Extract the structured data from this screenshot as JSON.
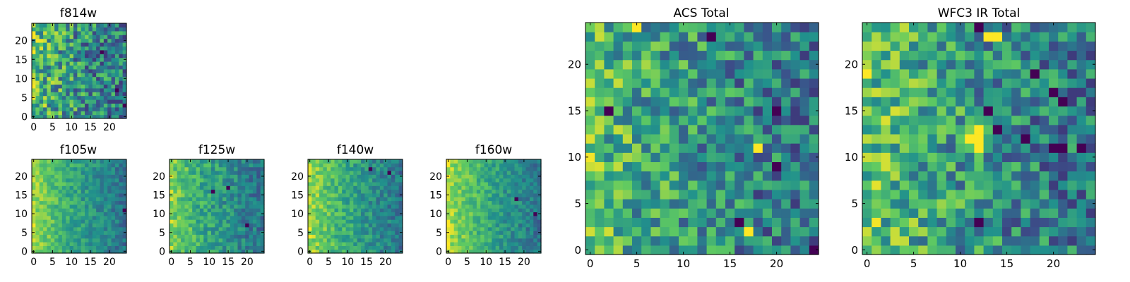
{
  "figure": {
    "description_free": true
  },
  "colormap": {
    "name": "viridis",
    "stops": [
      "#440154",
      "#3b528b",
      "#21918c",
      "#5ec962",
      "#fde725"
    ]
  },
  "chart_data": [
    {
      "id": "f814w",
      "type": "heatmap",
      "title": "f814w",
      "grid": [
        25,
        25
      ],
      "xlim": [
        0,
        24
      ],
      "ylim": [
        0,
        24
      ],
      "xticks": [
        "0",
        "5",
        "10",
        "15",
        "20"
      ],
      "yticks": [
        "0",
        "5",
        "10",
        "15",
        "20"
      ],
      "yticklabels_shown": [
        "0",
        "5",
        "10",
        "15",
        "20"
      ],
      "gradient_strength": 0.55,
      "noise": 0.45,
      "seed": 11,
      "dark_cells": [
        [
          24,
          3
        ],
        [
          18,
          17
        ],
        [
          22,
          7
        ]
      ],
      "hot_cells": []
    },
    {
      "id": "f105w",
      "type": "heatmap",
      "title": "f105w",
      "grid": [
        25,
        25
      ],
      "xlim": [
        0,
        24
      ],
      "ylim": [
        0,
        24
      ],
      "xticks": [
        "0",
        "5",
        "10",
        "15",
        "20"
      ],
      "yticks": [
        "0",
        "5",
        "10",
        "15",
        "20"
      ],
      "gradient_strength": 0.8,
      "noise": 0.18,
      "seed": 21,
      "dark_cells": [
        [
          24,
          11
        ]
      ],
      "hot_cells": []
    },
    {
      "id": "f125w",
      "type": "heatmap",
      "title": "f125w",
      "grid": [
        25,
        25
      ],
      "xlim": [
        0,
        24
      ],
      "ylim": [
        0,
        24
      ],
      "xticks": [
        "0",
        "5",
        "10",
        "15",
        "20"
      ],
      "yticks": [
        "0",
        "5",
        "10",
        "15",
        "20"
      ],
      "gradient_strength": 0.7,
      "noise": 0.22,
      "seed": 31,
      "dark_cells": [
        [
          11,
          16
        ],
        [
          15,
          17
        ],
        [
          20,
          7
        ]
      ],
      "hot_cells": []
    },
    {
      "id": "f140w",
      "type": "heatmap",
      "title": "f140w",
      "grid": [
        25,
        25
      ],
      "xlim": [
        0,
        24
      ],
      "ylim": [
        0,
        24
      ],
      "xticks": [
        "0",
        "5",
        "10",
        "15",
        "20"
      ],
      "yticks": [
        "0",
        "5",
        "10",
        "15",
        "20"
      ],
      "gradient_strength": 0.8,
      "noise": 0.2,
      "seed": 41,
      "dark_cells": [
        [
          16,
          22
        ],
        [
          21,
          21
        ]
      ],
      "hot_cells": []
    },
    {
      "id": "f160w",
      "type": "heatmap",
      "title": "f160w",
      "grid": [
        25,
        25
      ],
      "xlim": [
        0,
        24
      ],
      "ylim": [
        0,
        24
      ],
      "xticks": [
        "0",
        "5",
        "10",
        "15",
        "20"
      ],
      "yticks": [
        "0",
        "5",
        "10",
        "15",
        "20"
      ],
      "gradient_strength": 0.85,
      "noise": 0.18,
      "seed": 51,
      "dark_cells": [
        [
          18,
          14
        ],
        [
          23,
          10
        ]
      ],
      "hot_cells": []
    },
    {
      "id": "acs-total",
      "type": "heatmap",
      "title": "ACS Total",
      "grid": [
        25,
        25
      ],
      "xlim": [
        0,
        24
      ],
      "ylim": [
        0,
        24
      ],
      "xticks": [
        "0",
        "5",
        "10",
        "15",
        "20"
      ],
      "yticks": [
        "0",
        "5",
        "10",
        "15",
        "20"
      ],
      "gradient_strength": 0.55,
      "noise": 0.4,
      "seed": 61,
      "dark_cells": [
        [
          13,
          23
        ],
        [
          20,
          15
        ],
        [
          20,
          9
        ],
        [
          16,
          3
        ],
        [
          24,
          0
        ],
        [
          2,
          15
        ]
      ],
      "hot_cells": [
        [
          5,
          24
        ],
        [
          17,
          2
        ],
        [
          18,
          11
        ]
      ]
    },
    {
      "id": "wfc3-ir-total",
      "type": "heatmap",
      "title": "WFC3 IR Total",
      "grid": [
        25,
        25
      ],
      "xlim": [
        0,
        24
      ],
      "ylim": [
        0,
        24
      ],
      "xticks": [
        "0",
        "5",
        "10",
        "15",
        "20"
      ],
      "yticks": [
        "0",
        "5",
        "10",
        "15",
        "20"
      ],
      "gradient_strength": 0.6,
      "noise": 0.4,
      "seed": 71,
      "dark_cells": [
        [
          12,
          24
        ],
        [
          18,
          19
        ],
        [
          20,
          17
        ],
        [
          21,
          16
        ],
        [
          13,
          15
        ],
        [
          14,
          13
        ],
        [
          17,
          12
        ],
        [
          20,
          11
        ],
        [
          21,
          11
        ],
        [
          23,
          11
        ],
        [
          12,
          3
        ]
      ],
      "hot_cells": [
        [
          13,
          23
        ],
        [
          14,
          23
        ],
        [
          11,
          12
        ],
        [
          12,
          12
        ],
        [
          12,
          11
        ],
        [
          12,
          13
        ]
      ]
    }
  ]
}
